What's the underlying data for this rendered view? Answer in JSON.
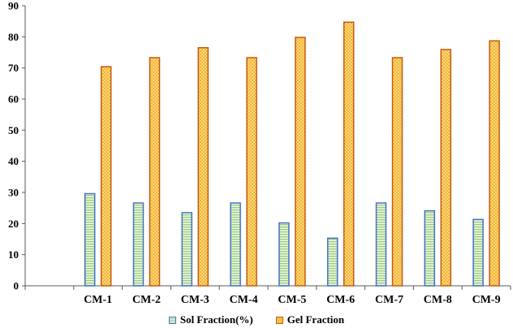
{
  "chart_data": {
    "type": "bar",
    "categories": [
      "CM-1",
      "CM-2",
      "CM-3",
      "CM-4",
      "CM-5",
      "CM-6",
      "CM-7",
      "CM-8",
      "CM-9"
    ],
    "series": [
      {
        "name": "Sol Fraction(%)",
        "values": [
          29.6,
          26.6,
          23.5,
          26.6,
          20.2,
          15.3,
          26.6,
          24.1,
          21.3
        ],
        "color": "#4472C4",
        "fill": "#A9D18E"
      },
      {
        "name": "Gel Fraction",
        "values": [
          70.4,
          73.3,
          76.5,
          73.3,
          79.8,
          84.7,
          73.3,
          75.9,
          78.7
        ],
        "color": "#C55A11",
        "fill": "#F5C242"
      }
    ],
    "ylim": [
      0,
      90
    ],
    "yticks": [
      0,
      10,
      20,
      30,
      40,
      50,
      60,
      70,
      80,
      90
    ],
    "grid": false,
    "legend_position": "bottom",
    "title": "",
    "xlabel": "",
    "ylabel": ""
  }
}
